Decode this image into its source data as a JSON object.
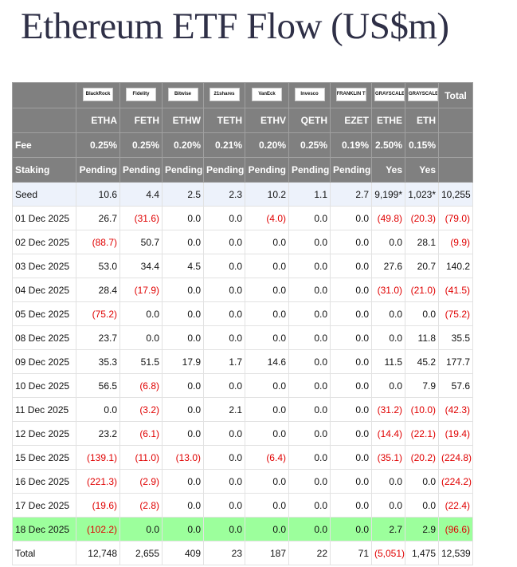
{
  "header": {
    "title": "Ethereum ETF Flow (US$m)"
  },
  "table": {
    "logos": [
      "BlackRock",
      "Fidelity",
      "Bitwise",
      "21shares",
      "VanEck",
      "Invesco",
      "FRANKLIN TEMPLETON",
      "GRAYSCALE",
      "GRAYSCALE"
    ],
    "total_header": "Total",
    "tickers": [
      "ETHA",
      "FETH",
      "ETHW",
      "TETH",
      "ETHV",
      "QETH",
      "EZET",
      "ETHE",
      "ETH"
    ],
    "fee": [
      "Fee",
      "0.25%",
      "0.25%",
      "0.20%",
      "0.21%",
      "0.20%",
      "0.25%",
      "0.19%",
      "2.50%",
      "0.15%"
    ],
    "staking": [
      "Staking",
      "Pending",
      "Pending",
      "Pending",
      "Pending",
      "Pending",
      "Pending",
      "Pending",
      "Yes",
      "Yes"
    ],
    "rows": [
      [
        "Seed",
        "10.6",
        "4.4",
        "2.5",
        "2.3",
        "10.2",
        "1.1",
        "2.7",
        "9,199*",
        "1,023*",
        "10,255"
      ],
      [
        "01 Dec 2025",
        "26.7",
        "(31.6)",
        "0.0",
        "0.0",
        "(4.0)",
        "0.0",
        "0.0",
        "(49.8)",
        "(20.3)",
        "(79.0)"
      ],
      [
        "02 Dec 2025",
        "(88.7)",
        "50.7",
        "0.0",
        "0.0",
        "0.0",
        "0.0",
        "0.0",
        "0.0",
        "28.1",
        "(9.9)"
      ],
      [
        "03 Dec 2025",
        "53.0",
        "34.4",
        "4.5",
        "0.0",
        "0.0",
        "0.0",
        "0.0",
        "27.6",
        "20.7",
        "140.2"
      ],
      [
        "04 Dec 2025",
        "28.4",
        "(17.9)",
        "0.0",
        "0.0",
        "0.0",
        "0.0",
        "0.0",
        "(31.0)",
        "(21.0)",
        "(41.5)"
      ],
      [
        "05 Dec 2025",
        "(75.2)",
        "0.0",
        "0.0",
        "0.0",
        "0.0",
        "0.0",
        "0.0",
        "0.0",
        "0.0",
        "(75.2)"
      ],
      [
        "08 Dec 2025",
        "23.7",
        "0.0",
        "0.0",
        "0.0",
        "0.0",
        "0.0",
        "0.0",
        "0.0",
        "11.8",
        "35.5"
      ],
      [
        "09 Dec 2025",
        "35.3",
        "51.5",
        "17.9",
        "1.7",
        "14.6",
        "0.0",
        "0.0",
        "11.5",
        "45.2",
        "177.7"
      ],
      [
        "10 Dec 2025",
        "56.5",
        "(6.8)",
        "0.0",
        "0.0",
        "0.0",
        "0.0",
        "0.0",
        "0.0",
        "7.9",
        "57.6"
      ],
      [
        "11 Dec 2025",
        "0.0",
        "(3.2)",
        "0.0",
        "2.1",
        "0.0",
        "0.0",
        "0.0",
        "(31.2)",
        "(10.0)",
        "(42.3)"
      ],
      [
        "12 Dec 2025",
        "23.2",
        "(6.1)",
        "0.0",
        "0.0",
        "0.0",
        "0.0",
        "0.0",
        "(14.4)",
        "(22.1)",
        "(19.4)"
      ],
      [
        "15 Dec 2025",
        "(139.1)",
        "(11.0)",
        "(13.0)",
        "0.0",
        "(6.4)",
        "0.0",
        "0.0",
        "(35.1)",
        "(20.2)",
        "(224.8)"
      ],
      [
        "16 Dec 2025",
        "(221.3)",
        "(2.9)",
        "0.0",
        "0.0",
        "0.0",
        "0.0",
        "0.0",
        "0.0",
        "0.0",
        "(224.2)"
      ],
      [
        "17 Dec 2025",
        "(19.6)",
        "(2.8)",
        "0.0",
        "0.0",
        "0.0",
        "0.0",
        "0.0",
        "0.0",
        "0.0",
        "(22.4)"
      ],
      [
        "18 Dec 2025",
        "(102.2)",
        "0.0",
        "0.0",
        "0.0",
        "0.0",
        "0.0",
        "0.0",
        "2.7",
        "2.9",
        "(96.6)"
      ],
      [
        "Total",
        "12,748",
        "2,655",
        "409",
        "23",
        "187",
        "22",
        "71",
        "(5,051)",
        "1,475",
        "12,539"
      ]
    ]
  }
}
